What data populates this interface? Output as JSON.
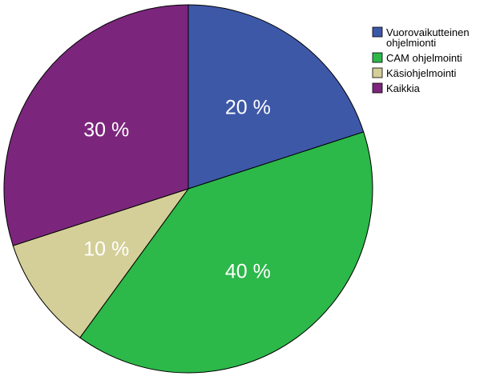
{
  "chart_data": {
    "type": "pie",
    "title": "",
    "slices": [
      {
        "label": [
          "Vuorovaikutteinen",
          "ohjelmionti"
        ],
        "value": 20,
        "value_label": "20 %",
        "color": "#3e58a8"
      },
      {
        "label": [
          "CAM ohjelmointi"
        ],
        "value": 40,
        "value_label": "40 %",
        "color": "#2db84a"
      },
      {
        "label": [
          "Käsiohjelmointi"
        ],
        "value": 10,
        "value_label": "10 %",
        "color": "#d4cf98"
      },
      {
        "label": [
          "Kaikkia"
        ],
        "value": 30,
        "value_label": "30 %",
        "color": "#7b267c"
      }
    ],
    "start_angle": "12 o'clock",
    "direction": "clockwise",
    "legend_position": "top-right"
  }
}
